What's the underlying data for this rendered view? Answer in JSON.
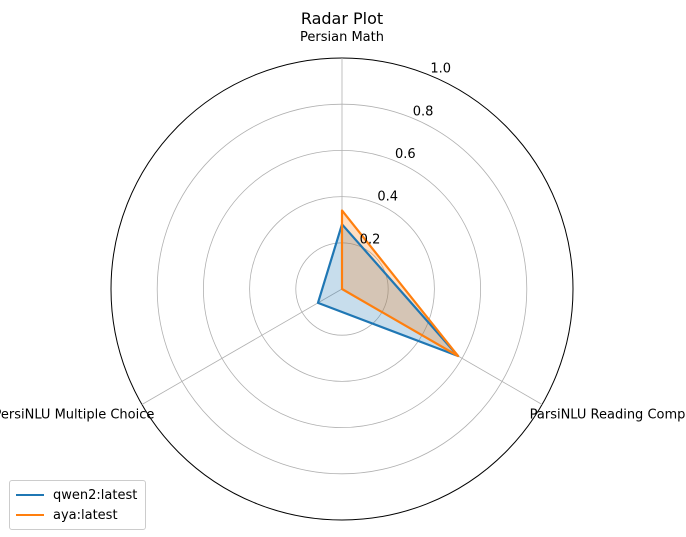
{
  "chart_data": {
    "type": "radar",
    "title": "Radar Plot",
    "categories": [
      "Persian Math",
      "ParsiNLU Reading Comprehension",
      "PersiNLU Multiple Choice"
    ],
    "radial_ticks": [
      "0.2",
      "0.4",
      "0.6",
      "0.8",
      "1.0"
    ],
    "rlim": [
      0,
      1.0
    ],
    "grid": true,
    "legend_position": "bottom-left",
    "series": [
      {
        "name": "qwen2:latest",
        "values": [
          0.28,
          0.58,
          0.12
        ],
        "color": "#1f77b4"
      },
      {
        "name": "aya:latest",
        "values": [
          0.34,
          0.58,
          0.0
        ],
        "color": "#ff7f0e"
      }
    ]
  }
}
